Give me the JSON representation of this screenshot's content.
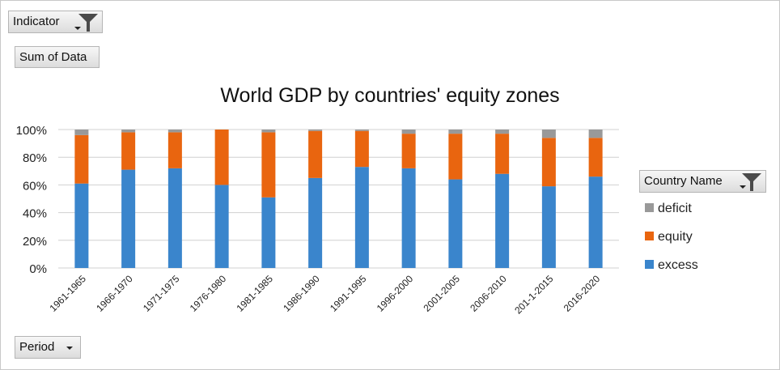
{
  "buttons": {
    "indicator": "Indicator",
    "sum_of_data": "Sum of Data",
    "country_name": "Country Name",
    "period": "Period"
  },
  "colors": {
    "excess": "#3a85cc",
    "equity": "#e9650f",
    "deficit": "#999999",
    "grid": "#d0d0d0"
  },
  "icons": [
    "filter-icon",
    "dropdown-arrow-icon"
  ],
  "chart_data": {
    "type": "bar",
    "stacked": "percent",
    "title": "World GDP by countries' equity zones",
    "categories": [
      "1961-1965",
      "1966-1970",
      "1971-1975",
      "1976-1980",
      "1981-1985",
      "1986-1990",
      "1991-1995",
      "1996-2000",
      "2001-2005",
      "2006-2010",
      "201-1-2015",
      "2016-2020"
    ],
    "series": [
      {
        "name": "excess",
        "values": [
          61,
          71,
          72,
          60,
          51,
          65,
          73,
          72,
          64,
          68,
          59,
          66
        ]
      },
      {
        "name": "equity",
        "values": [
          35,
          27,
          26,
          40,
          47,
          34,
          26,
          25,
          33,
          29,
          35,
          28
        ]
      },
      {
        "name": "deficit",
        "values": [
          4,
          2,
          2,
          0,
          2,
          1,
          1,
          3,
          3,
          3,
          6,
          6
        ]
      }
    ],
    "y_ticks": [
      "0%",
      "20%",
      "40%",
      "60%",
      "80%",
      "100%"
    ],
    "ylim": [
      0,
      100
    ],
    "grid": true,
    "legend_position": "right",
    "legend_order": [
      "deficit",
      "equity",
      "excess"
    ]
  }
}
